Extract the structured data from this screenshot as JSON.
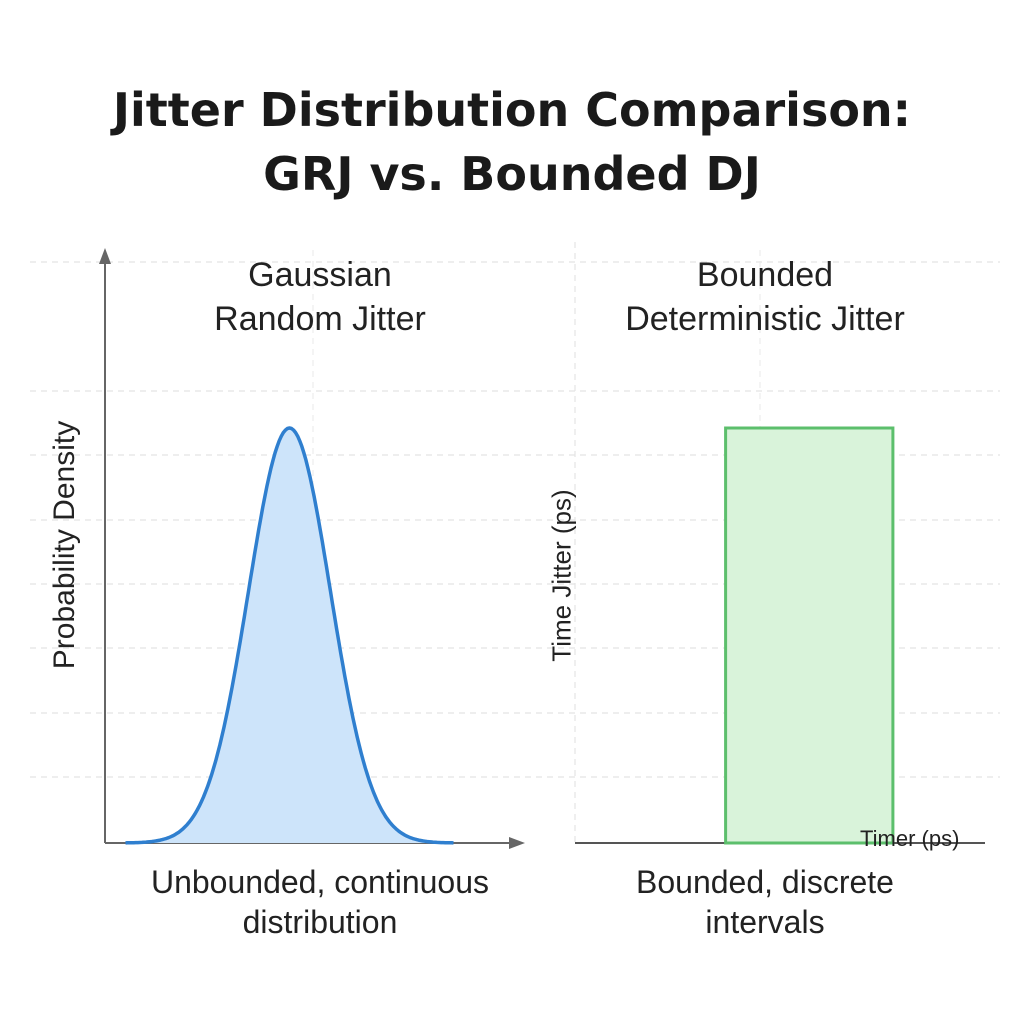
{
  "title_lines": [
    "Jitter Distribution Comparison:",
    "GRJ vs. Bounded DJ"
  ],
  "chart_data": [
    {
      "type": "area",
      "title_lines": [
        "Gaussian",
        "Random Jitter"
      ],
      "xlabel": "",
      "ylabel": "Probability Density",
      "caption_lines": [
        "Unbounded, continuous",
        "distribution"
      ],
      "distribution": "gaussian",
      "x": [
        -4,
        -3.5,
        -3,
        -2.5,
        -2,
        -1.5,
        -1,
        -0.5,
        0,
        0.5,
        1,
        1.5,
        2,
        2.5,
        3,
        3.5,
        4
      ],
      "values": [
        0.0003,
        0.002,
        0.011,
        0.044,
        0.135,
        0.325,
        0.607,
        0.882,
        1.0,
        0.882,
        0.607,
        0.325,
        0.135,
        0.044,
        0.011,
        0.002,
        0.0003
      ],
      "xlim": [
        -4.5,
        5.5
      ],
      "ylim": [
        0,
        1.4
      ],
      "grid": true,
      "colors": {
        "line": "#2f7fcf",
        "fill": "#cde4fa"
      }
    },
    {
      "type": "area",
      "title_lines": [
        "Bounded",
        "Deterministic Jitter"
      ],
      "xlabel": "Timer (ps)",
      "ylabel": "Time Jitter (ps)",
      "caption_lines": [
        "Bounded, discrete",
        "intervals"
      ],
      "distribution": "uniform",
      "x": [
        -1,
        1
      ],
      "values": [
        1,
        1
      ],
      "xlim": [
        -2.8,
        2.1
      ],
      "ylim": [
        0,
        1.4
      ],
      "grid": true,
      "colors": {
        "line": "#5cbf6c",
        "fill": "#d9f3da"
      }
    }
  ]
}
